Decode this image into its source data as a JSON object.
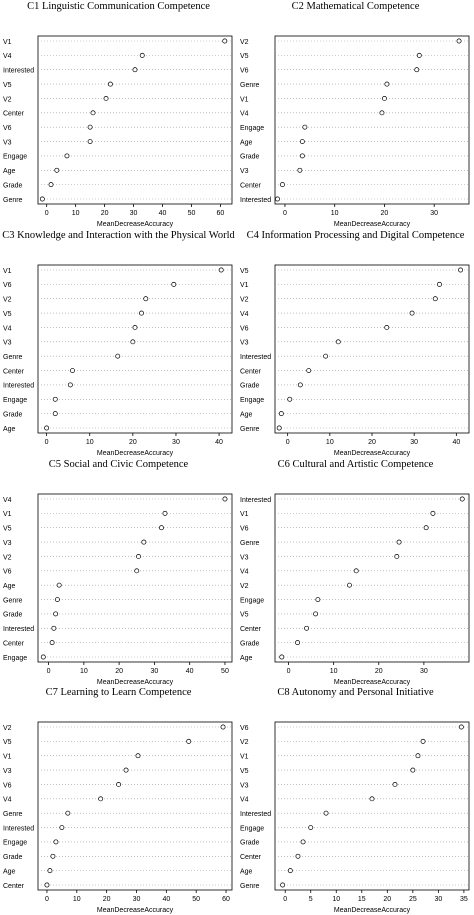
{
  "chart_data": [
    {
      "type": "scatter",
      "title": "C1 Linguistic Communication Competence",
      "xlabel": "MeanDecreaseAccuracy",
      "ylabel": "",
      "xlim": [
        -3,
        64
      ],
      "xticks": [
        0,
        10,
        20,
        30,
        40,
        50,
        60
      ],
      "categories": [
        "V1",
        "V4",
        "Interested",
        "V5",
        "V2",
        "Center",
        "V6",
        "V3",
        "Engage",
        "Age",
        "Grade",
        "Genre"
      ],
      "values": [
        61.5,
        33,
        30.5,
        22,
        20.5,
        16,
        15,
        15,
        7,
        3.5,
        1.5,
        -1.5
      ]
    },
    {
      "type": "scatter",
      "title": "C2 Mathematical Competence",
      "xlabel": "MeanDecreaseAccuracy",
      "ylabel": "",
      "xlim": [
        -2,
        37
      ],
      "xticks": [
        0,
        10,
        20,
        30
      ],
      "categories": [
        "V2",
        "V5",
        "V6",
        "Genre",
        "V1",
        "V4",
        "Engage",
        "Age",
        "Grade",
        "V3",
        "Center",
        "Interested"
      ],
      "values": [
        35,
        27,
        26.5,
        20.5,
        20,
        19.5,
        4,
        3.5,
        3.5,
        3,
        -0.5,
        -1.5
      ]
    },
    {
      "type": "scatter",
      "title": "C3 Knowledge and Interaction with the Physical World",
      "xlabel": "MeanDecreaseAccuracy",
      "ylabel": "",
      "xlim": [
        -2,
        43
      ],
      "xticks": [
        0,
        10,
        20,
        30,
        40
      ],
      "categories": [
        "V1",
        "V6",
        "V2",
        "V5",
        "V4",
        "V3",
        "Genre",
        "Center",
        "Interested",
        "Engage",
        "Grade",
        "Age"
      ],
      "values": [
        40.5,
        29.5,
        23,
        22,
        20.5,
        20,
        16.5,
        6,
        5.5,
        2,
        2,
        0
      ]
    },
    {
      "type": "scatter",
      "title": "C4 Information Processing and Digital Competence",
      "xlabel": "MeanDecreaseAccuracy",
      "ylabel": "",
      "xlim": [
        -3,
        43
      ],
      "xticks": [
        0,
        10,
        20,
        30,
        40
      ],
      "categories": [
        "V5",
        "V1",
        "V2",
        "V4",
        "V6",
        "V3",
        "Interested",
        "Center",
        "Grade",
        "Engage",
        "Age",
        "Genre"
      ],
      "values": [
        41,
        36,
        35,
        29.5,
        23.5,
        12,
        9,
        5,
        3,
        0.5,
        -1.5,
        -2
      ]
    },
    {
      "type": "scatter",
      "title": "C5 Social and Civic Competence",
      "xlabel": "MeanDecreaseAccuracy",
      "ylabel": "",
      "xlim": [
        -3,
        52
      ],
      "xticks": [
        0,
        10,
        20,
        30,
        40,
        50
      ],
      "categories": [
        "V4",
        "V1",
        "V5",
        "V3",
        "V2",
        "V6",
        "Age",
        "Genre",
        "Grade",
        "Interested",
        "Center",
        "Engage"
      ],
      "values": [
        50,
        33,
        32,
        27,
        25.5,
        25,
        3,
        2.5,
        2,
        1.5,
        1,
        -1.5
      ]
    },
    {
      "type": "scatter",
      "title": "C6 Cultural and Artistic Competence",
      "xlabel": "MeanDecreaseAccuracy",
      "ylabel": "",
      "xlim": [
        -3,
        40
      ],
      "xticks": [
        0,
        10,
        20,
        30
      ],
      "categories": [
        "Interested",
        "V1",
        "V6",
        "Genre",
        "V3",
        "V4",
        "V2",
        "Engage",
        "V5",
        "Center",
        "Grade",
        "Age"
      ],
      "values": [
        38.5,
        32,
        30.5,
        24.5,
        24,
        15,
        13.5,
        6.5,
        6,
        4,
        2,
        -1.5
      ]
    },
    {
      "type": "scatter",
      "title": "C7 Learning to Learn Competence",
      "xlabel": "MeanDecreaseAccuracy",
      "ylabel": "",
      "xlim": [
        -3,
        62
      ],
      "xticks": [
        0,
        10,
        20,
        30,
        40,
        50,
        60
      ],
      "categories": [
        "V2",
        "V5",
        "V1",
        "V3",
        "V6",
        "V4",
        "Genre",
        "Interested",
        "Engage",
        "Grade",
        "Age",
        "Center"
      ],
      "values": [
        59,
        47.5,
        30.5,
        26.5,
        24,
        18,
        7,
        5,
        3,
        2,
        1,
        0
      ]
    },
    {
      "type": "scatter",
      "title": "C8 Autonomy and Personal Initiative",
      "xlabel": "MeanDecreaseAccuracy",
      "ylabel": "",
      "xlim": [
        -2,
        36
      ],
      "xticks": [
        0,
        5,
        10,
        15,
        20,
        25,
        30,
        35
      ],
      "categories": [
        "V6",
        "V2",
        "V1",
        "V5",
        "V3",
        "V4",
        "Interested",
        "Engage",
        "Grade",
        "Center",
        "Age",
        "Genre"
      ],
      "values": [
        34.5,
        27,
        26,
        25,
        21.5,
        17,
        8,
        5,
        3.5,
        2.5,
        1,
        -0.5
      ]
    }
  ]
}
